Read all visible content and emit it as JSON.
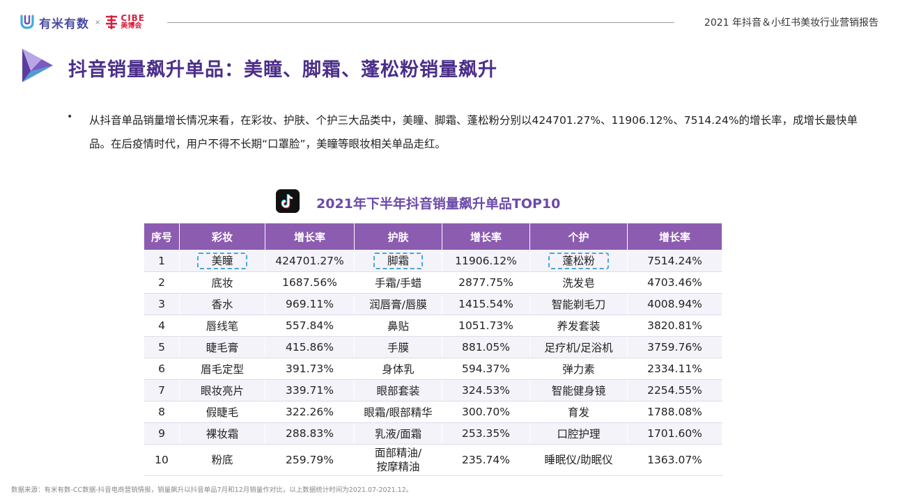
{
  "header": {
    "brand_name": "有米有数",
    "separator": "×",
    "cibe_en": "CIBE",
    "cibe_cn": "美博会",
    "report_title": "2021 年抖音＆小红书美妆行业营销报告"
  },
  "page_title": "抖音销量飙升单品：美瞳、脚霜、蓬松粉销量飙升",
  "bullet": {
    "marker": "•",
    "text": "从抖音单品销量增长情况来看，在彩妆、护肤、个护三大品类中，美瞳、脚霜、蓬松粉分别以424701.27%、11906.12%、7514.24%的增长率，成增长最快单品。在后疫情时代，用户不得不长期“口罩脸”，美瞳等眼妆相关单品走红。"
  },
  "table": {
    "title": "2021年下半年抖音销量飙升单品TOP10",
    "headers": [
      "序号",
      "彩妆",
      "增长率",
      "护肤",
      "增长率",
      "个护",
      "增长率"
    ],
    "rows": [
      [
        "1",
        "美瞳",
        "424701.27%",
        "脚霜",
        "11906.12%",
        "蓬松粉",
        "7514.24%"
      ],
      [
        "2",
        "底妆",
        "1687.56%",
        "手霜/手蜡",
        "2877.75%",
        "洗发皂",
        "4703.46%"
      ],
      [
        "3",
        "香水",
        "969.11%",
        "润唇膏/唇膜",
        "1415.54%",
        "智能剃毛刀",
        "4008.94%"
      ],
      [
        "4",
        "唇线笔",
        "557.84%",
        "鼻贴",
        "1051.73%",
        "养发套装",
        "3820.81%"
      ],
      [
        "5",
        "睫毛膏",
        "415.86%",
        "手膜",
        "881.05%",
        "足疗机/足浴机",
        "3759.76%"
      ],
      [
        "6",
        "眉毛定型",
        "391.73%",
        "身体乳",
        "594.37%",
        "弹力素",
        "2334.11%"
      ],
      [
        "7",
        "眼妆亮片",
        "339.71%",
        "眼部套装",
        "324.53%",
        "智能健身镜",
        "2254.55%"
      ],
      [
        "8",
        "假睫毛",
        "322.26%",
        "眼霜/眼部精华",
        "300.70%",
        "育发",
        "1788.08%"
      ],
      [
        "9",
        "裸妆霜",
        "288.83%",
        "乳液/面霜",
        "253.35%",
        "口腔护理",
        "1701.60%"
      ],
      [
        "10",
        "粉底",
        "259.79%",
        "面部精油/\n按摩精油",
        "235.74%",
        "睡眠仪/助眠仪",
        "1363.07%"
      ]
    ]
  },
  "footnote": "数据来源：有米有数-CC数据-抖音电商营销情报，销量飙升以抖音单品7月和12月销量作对比，以上数据统计时间为2021.07-2021.12。",
  "colors": {
    "title_purple": "#4b2e8a",
    "header_purple": "#8c5cb0",
    "highlight_blue": "#4aa6d8",
    "cibe_red": "#d81e3a"
  },
  "icons": [
    "youmi-logo-icon",
    "cibe-logo-icon",
    "triangle-logo-icon",
    "tiktok-icon"
  ]
}
